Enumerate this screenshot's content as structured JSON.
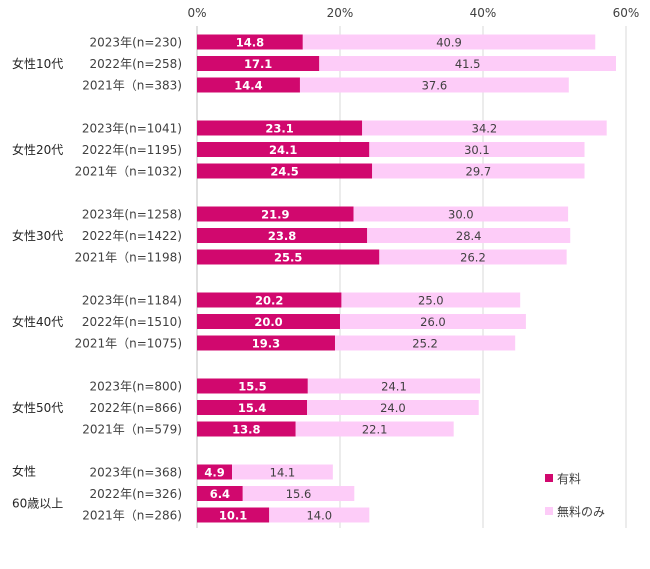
{
  "chart_data": {
    "type": "bar",
    "orientation": "horizontal",
    "stacked": true,
    "xlim": [
      0,
      60
    ],
    "x_ticks": [
      "0%",
      "20%",
      "40%",
      "60%"
    ],
    "grid": "vertical",
    "legend_position": "bottom-right",
    "series": [
      {
        "name": "有料",
        "color": "#d1086e"
      },
      {
        "name": "無料のみ",
        "color": "#fdccf8"
      }
    ],
    "groups": [
      {
        "label": [
          "女性10代"
        ],
        "rows": [
          {
            "label": "2023年(n=230)",
            "values": [
              14.8,
              40.9
            ],
            "value_labels": [
              "14.8",
              "40.9"
            ]
          },
          {
            "label": "2022年(n=258)",
            "values": [
              17.1,
              41.5
            ],
            "value_labels": [
              "17.1",
              "41.5"
            ]
          },
          {
            "label": "2021年（n=383)",
            "values": [
              14.4,
              37.6
            ],
            "value_labels": [
              "14.4",
              "37.6"
            ]
          }
        ]
      },
      {
        "label": [
          "女性20代"
        ],
        "rows": [
          {
            "label": "2023年(n=1041)",
            "values": [
              23.1,
              34.2
            ],
            "value_labels": [
              "23.1",
              "34.2"
            ]
          },
          {
            "label": "2022年(n=1195)",
            "values": [
              24.1,
              30.1
            ],
            "value_labels": [
              "24.1",
              "30.1"
            ]
          },
          {
            "label": "2021年（n=1032)",
            "values": [
              24.5,
              29.7
            ],
            "value_labels": [
              "24.5",
              "29.7"
            ]
          }
        ]
      },
      {
        "label": [
          "女性30代"
        ],
        "rows": [
          {
            "label": "2023年(n=1258)",
            "values": [
              21.9,
              30.0
            ],
            "value_labels": [
              "21.9",
              "30.0"
            ]
          },
          {
            "label": "2022年(n=1422)",
            "values": [
              23.8,
              28.4
            ],
            "value_labels": [
              "23.8",
              "28.4"
            ]
          },
          {
            "label": "2021年（n=1198)",
            "values": [
              25.5,
              26.2
            ],
            "value_labels": [
              "25.5",
              "26.2"
            ]
          }
        ]
      },
      {
        "label": [
          "女性40代"
        ],
        "rows": [
          {
            "label": "2023年(n=1184)",
            "values": [
              20.2,
              25.0
            ],
            "value_labels": [
              "20.2",
              "25.0"
            ]
          },
          {
            "label": "2022年(n=1510)",
            "values": [
              20.0,
              26.0
            ],
            "value_labels": [
              "20.0",
              "26.0"
            ]
          },
          {
            "label": "2021年（n=1075)",
            "values": [
              19.3,
              25.2
            ],
            "value_labels": [
              "19.3",
              "25.2"
            ]
          }
        ]
      },
      {
        "label": [
          "女性50代"
        ],
        "rows": [
          {
            "label": "2023年(n=800)",
            "values": [
              15.5,
              24.1
            ],
            "value_labels": [
              "15.5",
              "24.1"
            ]
          },
          {
            "label": "2022年(n=866)",
            "values": [
              15.4,
              24.0
            ],
            "value_labels": [
              "15.4",
              "24.0"
            ]
          },
          {
            "label": "2021年（n=579)",
            "values": [
              13.8,
              22.1
            ],
            "value_labels": [
              "13.8",
              "22.1"
            ]
          }
        ]
      },
      {
        "label": [
          "女性",
          "60歳以上"
        ],
        "rows": [
          {
            "label": "2023年(n=368)",
            "values": [
              4.9,
              14.1
            ],
            "value_labels": [
              "4.9",
              "14.1"
            ]
          },
          {
            "label": "2022年(n=326)",
            "values": [
              6.4,
              15.6
            ],
            "value_labels": [
              "6.4",
              "15.6"
            ]
          },
          {
            "label": "2021年（n=286)",
            "values": [
              10.1,
              14.0
            ],
            "value_labels": [
              "10.1",
              "14.0"
            ]
          }
        ]
      }
    ]
  }
}
